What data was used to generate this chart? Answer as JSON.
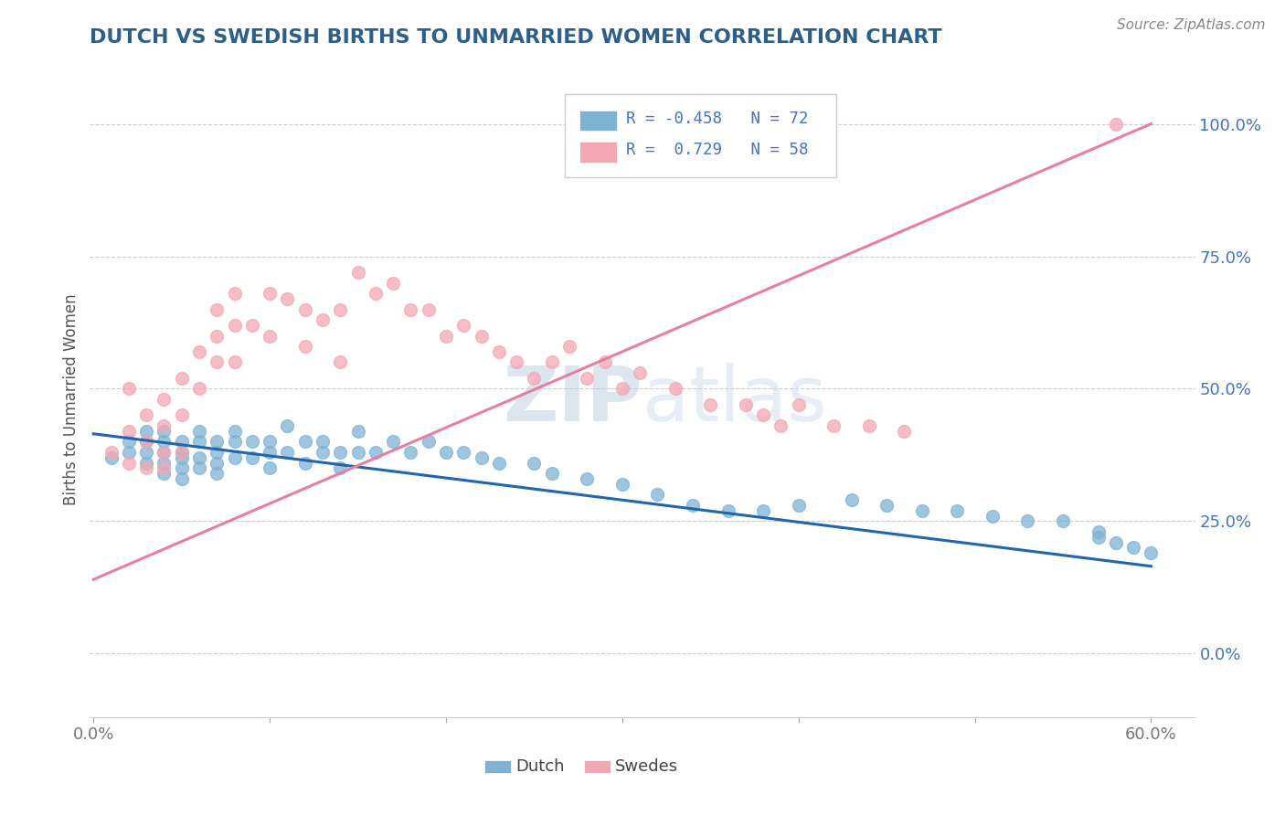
{
  "title": "DUTCH VS SWEDISH BIRTHS TO UNMARRIED WOMEN CORRELATION CHART",
  "source": "Source: ZipAtlas.com",
  "ylabel": "Births to Unmarried Women",
  "right_yticks": [
    "0.0%",
    "25.0%",
    "50.0%",
    "75.0%",
    "100.0%"
  ],
  "right_ytick_vals": [
    0.0,
    0.25,
    0.5,
    0.75,
    1.0
  ],
  "dutch_R": -0.458,
  "dutch_N": 72,
  "swedes_R": 0.729,
  "swedes_N": 58,
  "dutch_color": "#7fb3d3",
  "swedes_color": "#f4a7b3",
  "dutch_line_color": "#2166ac",
  "swedes_line_color": "#e87fa0",
  "watermark_color": "#c8d8ea",
  "title_color": "#2c5f8a",
  "legend_text_color": "#4472c4",
  "background_color": "#ffffff",
  "grid_color": "#cccccc",
  "dutch_scatter_x": [
    0.01,
    0.02,
    0.02,
    0.03,
    0.03,
    0.03,
    0.03,
    0.04,
    0.04,
    0.04,
    0.04,
    0.04,
    0.05,
    0.05,
    0.05,
    0.05,
    0.05,
    0.06,
    0.06,
    0.06,
    0.06,
    0.07,
    0.07,
    0.07,
    0.07,
    0.08,
    0.08,
    0.08,
    0.09,
    0.09,
    0.1,
    0.1,
    0.1,
    0.11,
    0.11,
    0.12,
    0.12,
    0.13,
    0.13,
    0.14,
    0.14,
    0.15,
    0.15,
    0.16,
    0.17,
    0.18,
    0.19,
    0.2,
    0.21,
    0.22,
    0.23,
    0.25,
    0.26,
    0.28,
    0.3,
    0.32,
    0.34,
    0.36,
    0.38,
    0.4,
    0.43,
    0.45,
    0.47,
    0.49,
    0.51,
    0.53,
    0.55,
    0.57,
    0.57,
    0.58,
    0.59,
    0.6
  ],
  "dutch_scatter_y": [
    0.37,
    0.4,
    0.38,
    0.42,
    0.4,
    0.38,
    0.36,
    0.42,
    0.4,
    0.38,
    0.36,
    0.34,
    0.4,
    0.38,
    0.37,
    0.35,
    0.33,
    0.42,
    0.4,
    0.37,
    0.35,
    0.4,
    0.38,
    0.36,
    0.34,
    0.42,
    0.4,
    0.37,
    0.4,
    0.37,
    0.4,
    0.38,
    0.35,
    0.43,
    0.38,
    0.4,
    0.36,
    0.4,
    0.38,
    0.38,
    0.35,
    0.42,
    0.38,
    0.38,
    0.4,
    0.38,
    0.4,
    0.38,
    0.38,
    0.37,
    0.36,
    0.36,
    0.34,
    0.33,
    0.32,
    0.3,
    0.28,
    0.27,
    0.27,
    0.28,
    0.29,
    0.28,
    0.27,
    0.27,
    0.26,
    0.25,
    0.25,
    0.23,
    0.22,
    0.21,
    0.2,
    0.19
  ],
  "swedes_scatter_x": [
    0.01,
    0.02,
    0.02,
    0.02,
    0.03,
    0.03,
    0.03,
    0.04,
    0.04,
    0.04,
    0.04,
    0.05,
    0.05,
    0.05,
    0.06,
    0.06,
    0.07,
    0.07,
    0.07,
    0.08,
    0.08,
    0.08,
    0.09,
    0.1,
    0.1,
    0.11,
    0.12,
    0.12,
    0.13,
    0.14,
    0.14,
    0.15,
    0.16,
    0.17,
    0.18,
    0.19,
    0.2,
    0.21,
    0.22,
    0.23,
    0.24,
    0.25,
    0.26,
    0.27,
    0.28,
    0.29,
    0.3,
    0.31,
    0.33,
    0.35,
    0.37,
    0.38,
    0.39,
    0.4,
    0.42,
    0.44,
    0.46,
    0.58
  ],
  "swedes_scatter_y": [
    0.38,
    0.5,
    0.42,
    0.36,
    0.45,
    0.4,
    0.35,
    0.48,
    0.43,
    0.38,
    0.35,
    0.52,
    0.45,
    0.38,
    0.57,
    0.5,
    0.65,
    0.6,
    0.55,
    0.68,
    0.62,
    0.55,
    0.62,
    0.68,
    0.6,
    0.67,
    0.65,
    0.58,
    0.63,
    0.65,
    0.55,
    0.72,
    0.68,
    0.7,
    0.65,
    0.65,
    0.6,
    0.62,
    0.6,
    0.57,
    0.55,
    0.52,
    0.55,
    0.58,
    0.52,
    0.55,
    0.5,
    0.53,
    0.5,
    0.47,
    0.47,
    0.45,
    0.43,
    0.47,
    0.43,
    0.43,
    0.42,
    1.0
  ],
  "dutch_trend_x": [
    0.0,
    0.6
  ],
  "dutch_trend_y": [
    0.415,
    0.165
  ],
  "swedes_trend_x": [
    0.0,
    0.6
  ],
  "swedes_trend_y": [
    0.14,
    1.0
  ],
  "xmin": -0.002,
  "xmax": 0.625,
  "ymin": -0.12,
  "ymax": 1.08,
  "x_tick_vals": [
    0.0,
    0.1,
    0.2,
    0.3,
    0.4,
    0.5,
    0.6
  ],
  "marker_size": 100
}
